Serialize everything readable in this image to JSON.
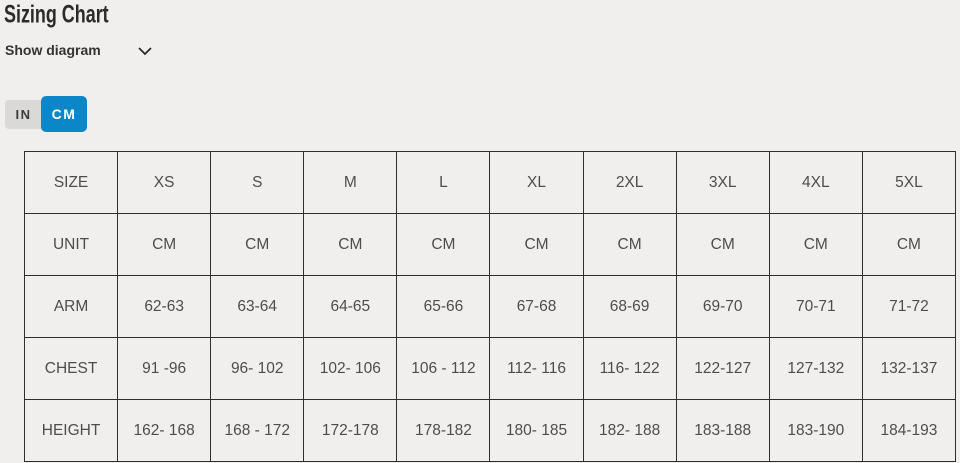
{
  "page": {
    "title": "Sizing Chart",
    "background_color": "#f0efed"
  },
  "diagram_toggle": {
    "label": "Show diagram",
    "icon": "chevron-down-icon"
  },
  "unit_toggle": {
    "options": [
      {
        "label": "IN",
        "active": false
      },
      {
        "label": "CM",
        "active": true
      }
    ],
    "active_color": "#0987c8",
    "inactive_color": "#d9d9d8"
  },
  "table": {
    "row_labels": [
      "SIZE",
      "UNIT",
      "ARM",
      "CHEST",
      "HEIGHT"
    ],
    "rows": [
      [
        "SIZE",
        "XS",
        "S",
        "M",
        "L",
        "XL",
        "2XL",
        "3XL",
        "4XL",
        "5XL"
      ],
      [
        "UNIT",
        "CM",
        "CM",
        "CM",
        "CM",
        "CM",
        "CM",
        "CM",
        "CM",
        "CM"
      ],
      [
        "ARM",
        "62-63",
        "63-64",
        "64-65",
        "65-66",
        "67-68",
        "68-69",
        "69-70",
        "70-71",
        "71-72"
      ],
      [
        "CHEST",
        "91 -96",
        "96- 102",
        "102- 106",
        "106 - 112",
        "112- 116",
        "116- 122",
        "122-127",
        "127-132",
        "132-137"
      ],
      [
        "HEIGHT",
        "162- 168",
        "168 - 172",
        "172-178",
        "178-182",
        "180- 185",
        "182- 188",
        "183-188",
        "183-190",
        "184-193"
      ]
    ]
  }
}
